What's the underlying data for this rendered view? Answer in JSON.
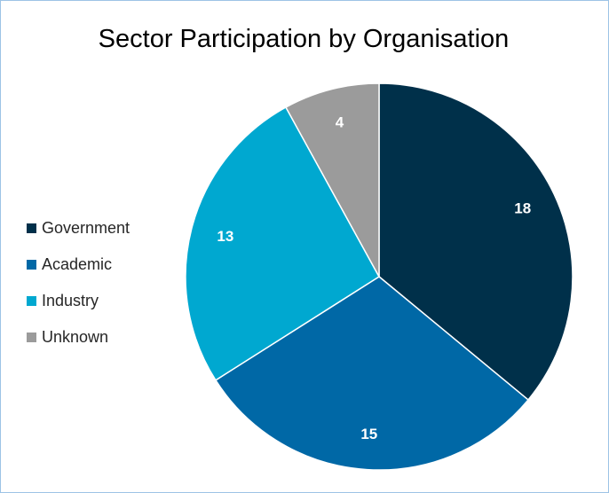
{
  "chart_data": {
    "type": "pie",
    "title": "Sector Participation by Organisation",
    "categories": [
      "Government",
      "Academic",
      "Industry",
      "Unknown"
    ],
    "values": [
      18,
      15,
      13,
      4
    ],
    "colors": [
      "#00304a",
      "#0068a6",
      "#00a8d0",
      "#9b9b9b"
    ],
    "legend_position": "left",
    "data_labels": [
      "18",
      "15",
      "13",
      "4"
    ]
  }
}
